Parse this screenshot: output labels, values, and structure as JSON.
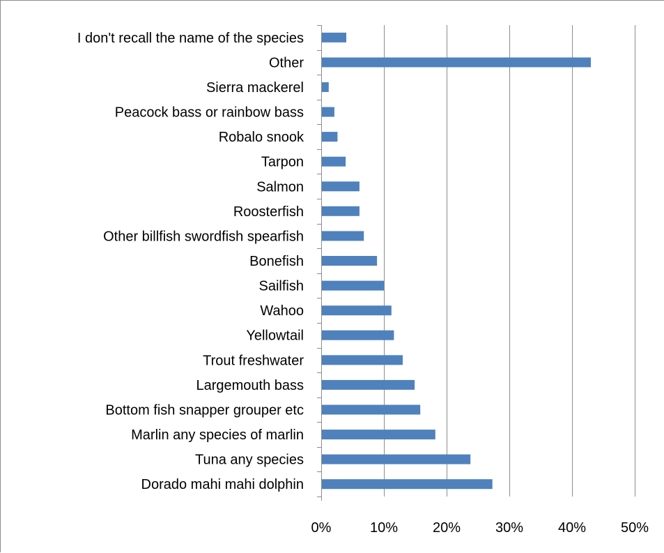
{
  "chart_data": {
    "type": "bar",
    "orientation": "horizontal",
    "categories": [
      "I don't recall the name of the species",
      "Other",
      "Sierra mackerel",
      "Peacock bass or rainbow bass",
      "Robalo  snook",
      "Tarpon",
      "Salmon",
      "Roosterfish",
      "Other billfish  swordfish  spearfish",
      "Bonefish",
      "Sailfish",
      "Wahoo",
      "Yellowtail",
      "Trout  freshwater",
      "Largemouth bass",
      "Bottom fish  snapper  grouper  etc",
      "Marlin  any species of marlin",
      "Tuna  any species",
      "Dorado  mahi mahi  dolphin"
    ],
    "values": [
      4,
      43,
      1.2,
      2.1,
      2.6,
      3.9,
      6.1,
      6.1,
      6.8,
      8.9,
      10,
      11.2,
      11.6,
      13,
      14.9,
      15.8,
      18.2,
      23.8,
      27.3
    ],
    "xlim": [
      0,
      50
    ],
    "ticks": [
      "0%",
      "10%",
      "20%",
      "30%",
      "40%",
      "50%"
    ],
    "tick_values": [
      0,
      10,
      20,
      30,
      40,
      50
    ],
    "title": "",
    "xlabel": "",
    "ylabel": "",
    "grid": true,
    "bar_color": "#4f81bd",
    "grid_color": "#8c8c8c"
  }
}
